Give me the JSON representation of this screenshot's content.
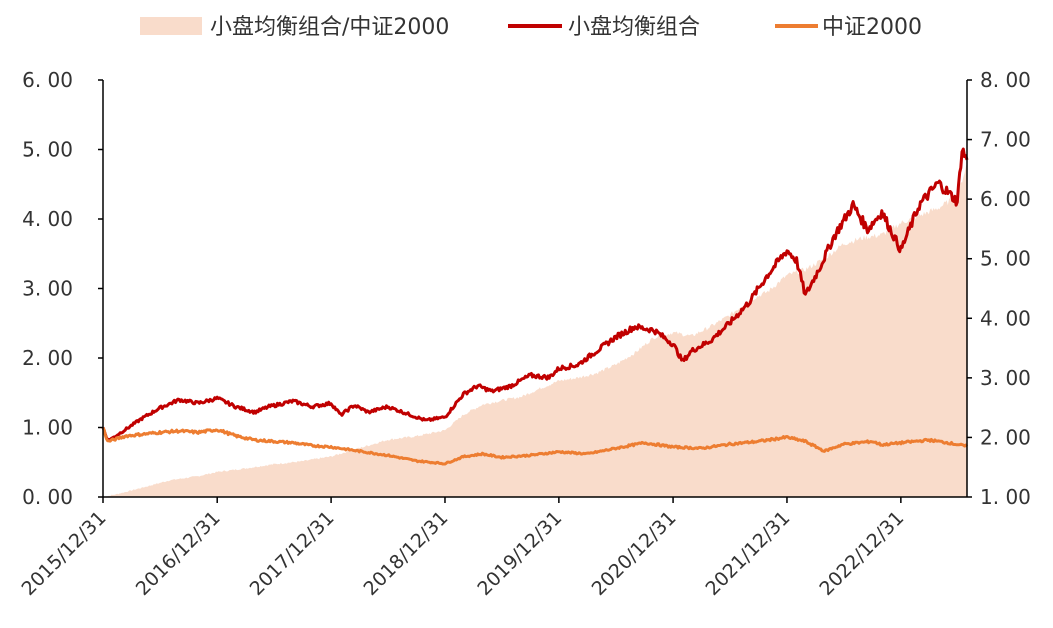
{
  "chart_data": {
    "type": "line",
    "legend": {
      "position": "top",
      "entries": [
        {
          "label": "小盘均衡组合/中证2000",
          "kind": "area",
          "color": "#f9dccb"
        },
        {
          "label": "小盘均衡组合",
          "kind": "line",
          "color": "#c00000"
        },
        {
          "label": "中证2000",
          "kind": "line",
          "color": "#ed7d31"
        }
      ]
    },
    "y_left": {
      "ylim": [
        0,
        6
      ],
      "ticks": [
        0,
        1,
        2,
        3,
        4,
        5,
        6
      ],
      "tick_labels": [
        "0. 00",
        "1. 00",
        "2. 00",
        "3. 00",
        "4. 00",
        "5. 00",
        "6. 00"
      ]
    },
    "y_right": {
      "ylim": [
        1,
        8
      ],
      "ticks": [
        1,
        2,
        3,
        4,
        5,
        6,
        7,
        8
      ],
      "tick_labels": [
        "1. 00",
        "2. 00",
        "3. 00",
        "4. 00",
        "5. 00",
        "6. 00",
        "7. 00",
        "8. 00"
      ]
    },
    "x": {
      "start": "2015-12-31",
      "end": "2023-07-31",
      "ticks": [
        "2015-12-31",
        "2016-12-31",
        "2017-12-31",
        "2018-12-31",
        "2019-12-31",
        "2020-12-31",
        "2021-12-31",
        "2022-12-31"
      ],
      "tick_labels": [
        "2015/12/31",
        "2016/12/31",
        "2017/12/31",
        "2018/12/31",
        "2019/12/31",
        "2020/12/31",
        "2021/12/31",
        "2022/12/31"
      ]
    },
    "grid": false,
    "series": [
      {
        "name": "小盘均衡组合/中证2000",
        "type": "area",
        "axis": "right",
        "color": "#f9dccb",
        "x": [
          "2015-12-31",
          "2016-02-15",
          "2016-04-30",
          "2016-07-31",
          "2016-10-31",
          "2016-12-31",
          "2017-03-31",
          "2017-06-30",
          "2017-09-30",
          "2017-12-31",
          "2018-03-31",
          "2018-06-30",
          "2018-09-30",
          "2018-12-31",
          "2019-02-28",
          "2019-04-30",
          "2019-06-30",
          "2019-08-31",
          "2019-10-31",
          "2019-12-31",
          "2020-02-29",
          "2020-04-30",
          "2020-06-30",
          "2020-08-31",
          "2020-10-31",
          "2020-12-31",
          "2021-02-28",
          "2021-04-30",
          "2021-06-30",
          "2021-08-31",
          "2021-10-31",
          "2021-12-31",
          "2022-02-28",
          "2022-04-30",
          "2022-06-30",
          "2022-08-31",
          "2022-10-31",
          "2022-12-31",
          "2023-02-28",
          "2023-04-30",
          "2023-06-30",
          "2023-07-31"
        ],
        "values": [
          1.0,
          1.05,
          1.15,
          1.28,
          1.35,
          1.42,
          1.48,
          1.55,
          1.6,
          1.68,
          1.82,
          1.96,
          2.02,
          2.12,
          2.38,
          2.55,
          2.62,
          2.68,
          2.82,
          2.95,
          3.0,
          3.08,
          3.22,
          3.42,
          3.68,
          3.76,
          3.7,
          3.86,
          4.05,
          4.3,
          4.45,
          4.72,
          4.82,
          5.0,
          5.25,
          5.35,
          5.4,
          5.6,
          5.72,
          5.85,
          6.05,
          6.6
        ]
      },
      {
        "name": "小盘均衡组合",
        "type": "line",
        "axis": "left",
        "color": "#c00000",
        "x": [
          "2015-12-31",
          "2016-01-15",
          "2016-01-31",
          "2016-03-15",
          "2016-04-30",
          "2016-06-30",
          "2016-08-31",
          "2016-10-31",
          "2016-12-31",
          "2017-02-28",
          "2017-04-30",
          "2017-06-15",
          "2017-08-31",
          "2017-10-31",
          "2017-12-31",
          "2018-01-31",
          "2018-03-15",
          "2018-04-30",
          "2018-06-30",
          "2018-08-31",
          "2018-10-31",
          "2018-12-31",
          "2019-02-28",
          "2019-04-15",
          "2019-05-31",
          "2019-07-31",
          "2019-09-30",
          "2019-11-30",
          "2019-12-31",
          "2020-02-29",
          "2020-04-30",
          "2020-06-30",
          "2020-08-31",
          "2020-10-31",
          "2020-12-31",
          "2021-01-31",
          "2021-02-28",
          "2021-04-30",
          "2021-06-30",
          "2021-08-31",
          "2021-10-31",
          "2021-12-31",
          "2022-01-31",
          "2022-02-28",
          "2022-04-15",
          "2022-05-31",
          "2022-07-31",
          "2022-09-15",
          "2022-10-31",
          "2022-12-31",
          "2023-02-28",
          "2023-04-30",
          "2023-06-30",
          "2023-07-15",
          "2023-07-31"
        ],
        "values": [
          1.0,
          0.82,
          0.85,
          0.98,
          1.12,
          1.28,
          1.4,
          1.35,
          1.42,
          1.3,
          1.22,
          1.3,
          1.38,
          1.3,
          1.35,
          1.18,
          1.32,
          1.22,
          1.3,
          1.2,
          1.1,
          1.15,
          1.48,
          1.6,
          1.52,
          1.6,
          1.75,
          1.72,
          1.85,
          1.9,
          2.1,
          2.3,
          2.45,
          2.4,
          2.2,
          1.95,
          2.1,
          2.25,
          2.5,
          2.8,
          3.2,
          3.55,
          3.4,
          2.9,
          3.3,
          3.75,
          4.2,
          3.85,
          4.1,
          3.55,
          4.2,
          4.52,
          4.25,
          5.0,
          4.85
        ]
      },
      {
        "name": "中证2000",
        "type": "line",
        "axis": "left",
        "color": "#ed7d31",
        "x": [
          "2015-12-31",
          "2016-01-15",
          "2016-01-31",
          "2016-03-15",
          "2016-04-30",
          "2016-06-30",
          "2016-08-31",
          "2016-10-31",
          "2016-12-31",
          "2017-02-28",
          "2017-04-30",
          "2017-06-30",
          "2017-08-31",
          "2017-10-31",
          "2017-12-31",
          "2018-03-31",
          "2018-06-30",
          "2018-09-30",
          "2018-12-31",
          "2019-02-28",
          "2019-04-30",
          "2019-06-30",
          "2019-09-30",
          "2019-12-31",
          "2020-03-31",
          "2020-06-30",
          "2020-09-30",
          "2020-12-31",
          "2021-03-31",
          "2021-06-30",
          "2021-09-30",
          "2021-12-31",
          "2022-02-28",
          "2022-04-30",
          "2022-06-30",
          "2022-09-30",
          "2022-10-31",
          "2022-12-31",
          "2023-03-31",
          "2023-05-31",
          "2023-07-31"
        ],
        "values": [
          1.0,
          0.8,
          0.82,
          0.88,
          0.9,
          0.93,
          0.95,
          0.93,
          0.97,
          0.88,
          0.82,
          0.8,
          0.78,
          0.74,
          0.72,
          0.66,
          0.6,
          0.52,
          0.48,
          0.58,
          0.62,
          0.57,
          0.6,
          0.65,
          0.62,
          0.7,
          0.78,
          0.72,
          0.7,
          0.76,
          0.8,
          0.86,
          0.8,
          0.66,
          0.76,
          0.8,
          0.75,
          0.78,
          0.82,
          0.78,
          0.73
        ]
      }
    ]
  }
}
